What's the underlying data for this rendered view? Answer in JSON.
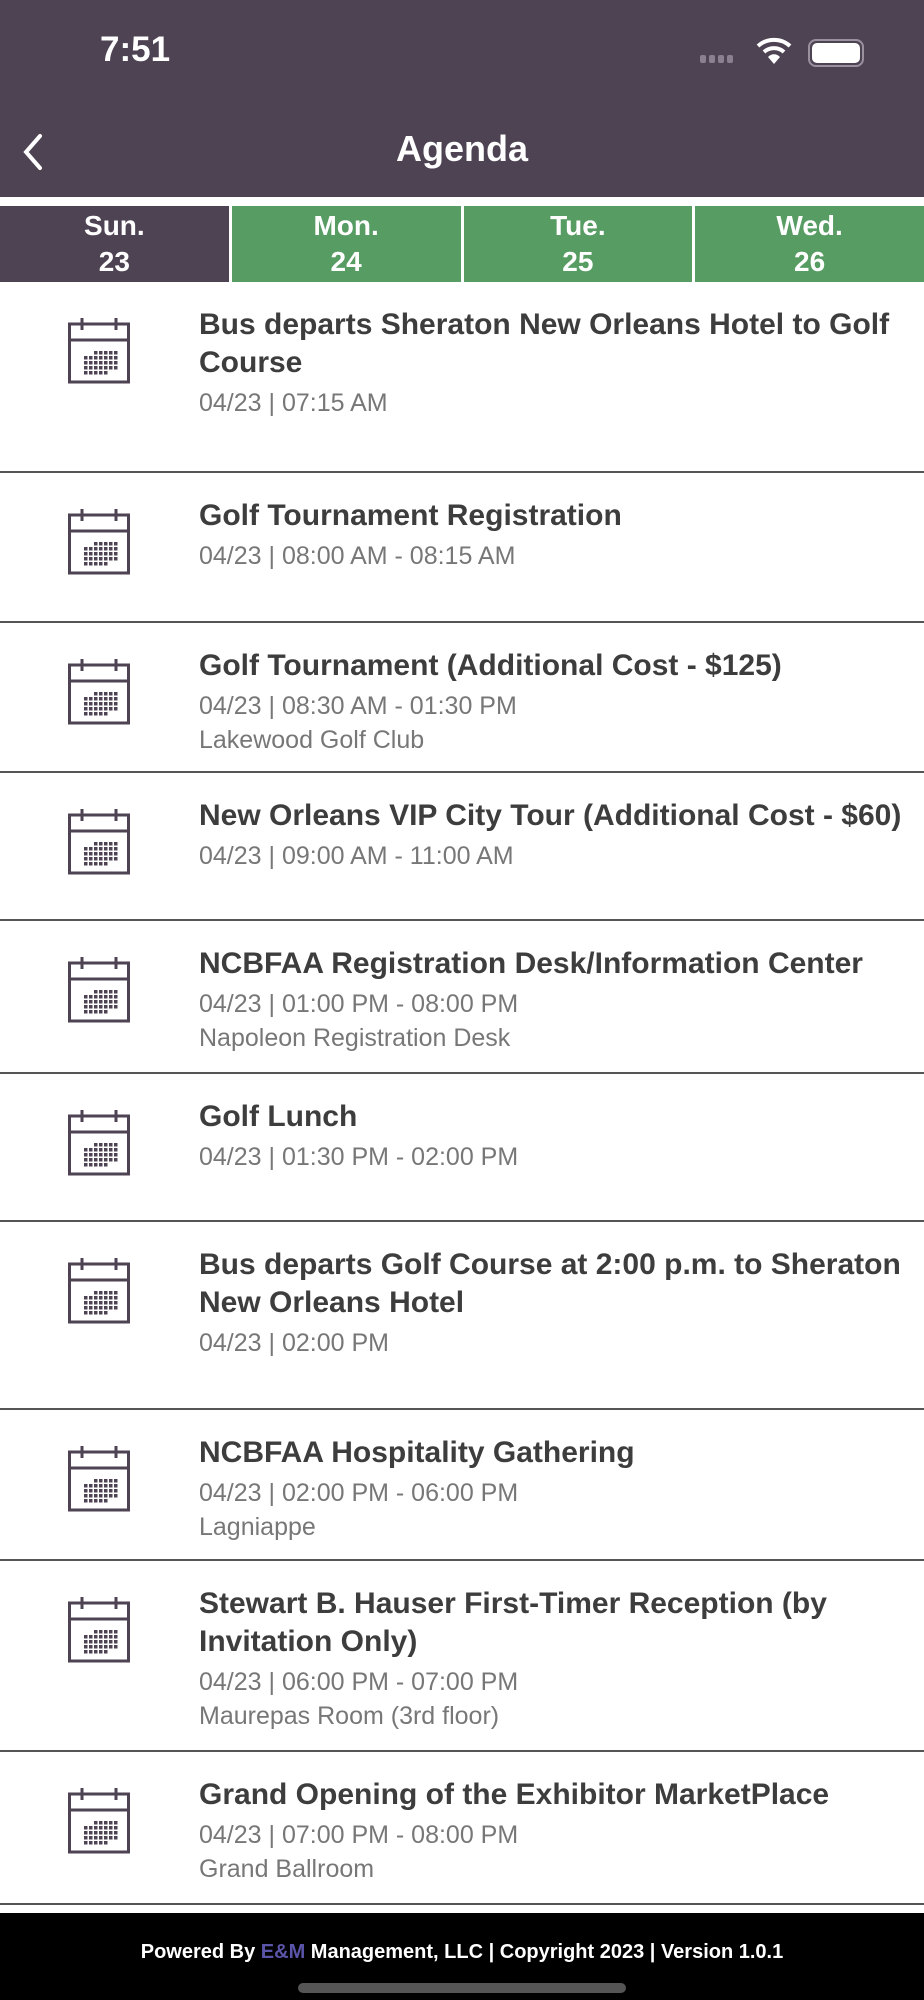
{
  "status": {
    "time": "7:51"
  },
  "header": {
    "title": "Agenda"
  },
  "colors": {
    "primary": "#4e4353",
    "tab_inactive": "#579c63",
    "brand": "#5a55a8"
  },
  "tabs": [
    {
      "day": "Sun.",
      "date": "23",
      "active": true
    },
    {
      "day": "Mon.",
      "date": "24",
      "active": false
    },
    {
      "day": "Tue.",
      "date": "25",
      "active": false
    },
    {
      "day": "Wed.",
      "date": "26",
      "active": false
    }
  ],
  "items": [
    {
      "title": "Bus departs Sheraton New Orleans Hotel to Golf Course",
      "date": "04/23 | 07:15 AM",
      "location": ""
    },
    {
      "title": "Golf Tournament Registration",
      "date": "04/23 | 08:00 AM - 08:15 AM",
      "location": ""
    },
    {
      "title": "Golf Tournament (Additional Cost - $125)",
      "date": "04/23 | 08:30 AM - 01:30 PM",
      "location": "Lakewood Golf Club"
    },
    {
      "title": "New Orleans VIP City Tour (Additional Cost - $60)",
      "date": "04/23 | 09:00 AM - 11:00 AM",
      "location": ""
    },
    {
      "title": "NCBFAA Registration Desk/Information Center",
      "date": "04/23 | 01:00 PM - 08:00 PM",
      "location": "Napoleon Registration Desk"
    },
    {
      "title": "Golf Lunch",
      "date": "04/23 | 01:30 PM - 02:00 PM",
      "location": ""
    },
    {
      "title": "Bus departs Golf Course at 2:00 p.m. to Sheraton New Orleans Hotel",
      "date": "04/23 | 02:00 PM",
      "location": ""
    },
    {
      "title": "NCBFAA Hospitality Gathering",
      "date": "04/23 | 02:00 PM - 06:00 PM",
      "location": "Lagniappe"
    },
    {
      "title": "Stewart B. Hauser First-Timer Reception (by Invitation Only)",
      "date": "04/23 | 06:00 PM - 07:00 PM",
      "location": "Maurepas Room (3rd floor)"
    },
    {
      "title": "Grand Opening of the Exhibitor MarketPlace",
      "date": "04/23 | 07:00 PM - 08:00 PM",
      "location": "Grand Ballroom"
    }
  ],
  "footer": {
    "prefix": "Powered By ",
    "brand": "E&M",
    "suffix": " Management, LLC | Copyright 2023 | Version 1.0.1"
  }
}
